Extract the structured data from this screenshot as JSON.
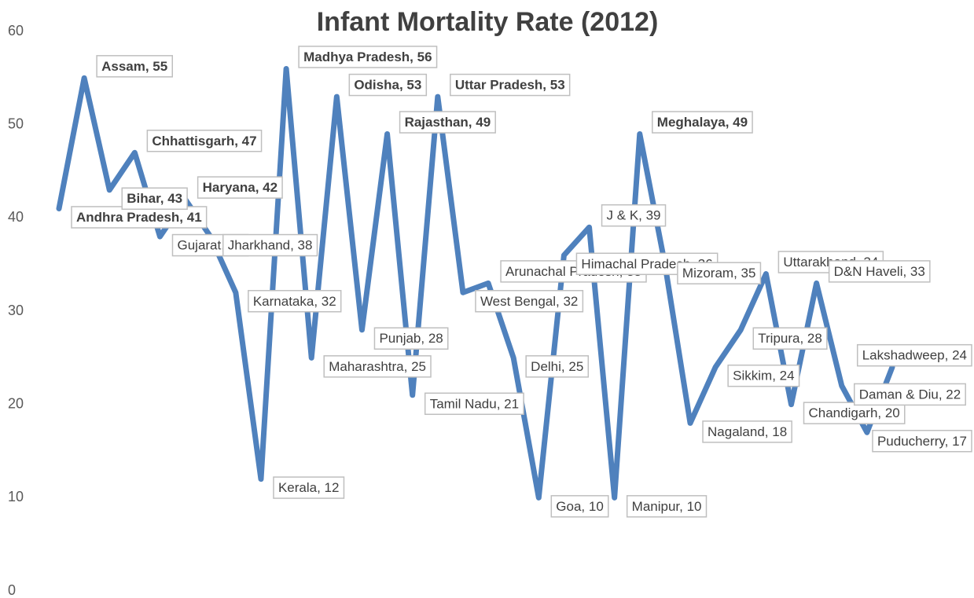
{
  "chart_data": {
    "type": "line",
    "title": "Infant Mortality Rate (2012)",
    "categories": [
      "Andhra Pradesh",
      "Assam",
      "Bihar",
      "Chhattisgarh",
      "Gujarat",
      "Haryana",
      "Jharkhand",
      "Karnataka",
      "Kerala",
      "Madhya Pradesh",
      "Maharashtra",
      "Odisha",
      "Punjab",
      "Rajasthan",
      "Tamil Nadu",
      "Uttar Pradesh",
      "West Bengal",
      "Arunachal Pradesh",
      "Delhi",
      "Goa",
      "Himachal Pradesh",
      "J & K",
      "Manipur",
      "Meghalaya",
      "Mizoram",
      "Nagaland",
      "Sikkim",
      "Tripura",
      "Uttarakhand",
      "Chandigarh",
      "D&N Haveli",
      "Daman & Diu",
      "Puducherry",
      "Lakshadweep"
    ],
    "series": [
      {
        "name": "Infant Mortality Rate",
        "color": "#4f81bd",
        "values": [
          41,
          55,
          43,
          47,
          38,
          42,
          38,
          32,
          12,
          56,
          25,
          53,
          28,
          49,
          21,
          53,
          32,
          33,
          25,
          10,
          36,
          39,
          10,
          49,
          35,
          18,
          24,
          28,
          34,
          20,
          33,
          22,
          17,
          24
        ],
        "value_labels": [
          "Andhra Pradesh, 41",
          "Assam, 55",
          "Bihar, 43",
          "Chhattisgarh, 47",
          "Gujarat, 38",
          "Haryana, 42",
          "Jharkhand, 38",
          "Karnataka, 32",
          "Kerala, 12",
          "Madhya Pradesh, 56",
          "Maharashtra, 25",
          "Odisha, 53",
          "Punjab, 28",
          "Rajasthan, 49",
          "Tamil Nadu, 21",
          "Uttar Pradesh, 53",
          "West Bengal, 32",
          "Arunachal Pradesh, 33",
          "Delhi, 25",
          "Goa, 10",
          "Himachal Pradesh, 36",
          "J & K, 39",
          "Manipur, 10",
          "Meghalaya, 49",
          "Mizoram, 35",
          "Nagaland, 18",
          "Sikkim, 24",
          "Tripura, 28",
          "Uttarakhand, 34",
          "Chandigarh, 20",
          "D&N Haveli, 33",
          "Daman & Diu, 22",
          "Puducherry, 17",
          "Lakshadweep, 24"
        ]
      }
    ],
    "ylim": [
      0,
      60
    ],
    "yticks": [
      0,
      10,
      20,
      30,
      40,
      50,
      60
    ],
    "grid": false,
    "legend": false
  }
}
